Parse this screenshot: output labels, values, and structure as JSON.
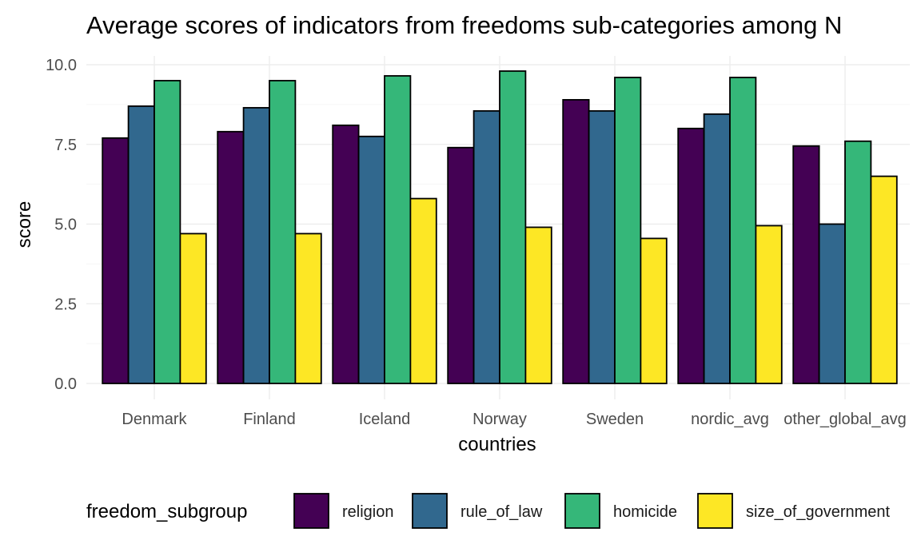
{
  "chart_data": {
    "type": "bar",
    "title": "Average scores of indicators from freedoms sub-categories among N",
    "xlabel": "countries",
    "ylabel": "score",
    "ylim": [
      0,
      10
    ],
    "yticks": [
      "0.0",
      "2.5",
      "5.0",
      "7.5",
      "10.0"
    ],
    "ytick_values": [
      0,
      2.5,
      5,
      7.5,
      10
    ],
    "grid": true,
    "legend_position": "bottom",
    "legend_title": "freedom_subgroup",
    "categories": [
      "Denmark",
      "Finland",
      "Iceland",
      "Norway",
      "Sweden",
      "nordic_avg",
      "other_global_avg"
    ],
    "series": [
      {
        "name": "religion",
        "color": "#440154",
        "values": [
          7.7,
          7.9,
          8.1,
          7.4,
          8.9,
          8.0,
          7.45
        ]
      },
      {
        "name": "rule_of_law",
        "color": "#31688E",
        "values": [
          8.7,
          8.65,
          7.75,
          8.55,
          8.55,
          8.45,
          5.0
        ]
      },
      {
        "name": "homicide",
        "color": "#35B779",
        "values": [
          9.5,
          9.5,
          9.65,
          9.8,
          9.6,
          9.6,
          7.6
        ]
      },
      {
        "name": "size_of_government",
        "color": "#FDE725",
        "values": [
          4.7,
          4.7,
          5.8,
          4.9,
          4.55,
          4.95,
          6.5
        ]
      }
    ]
  }
}
